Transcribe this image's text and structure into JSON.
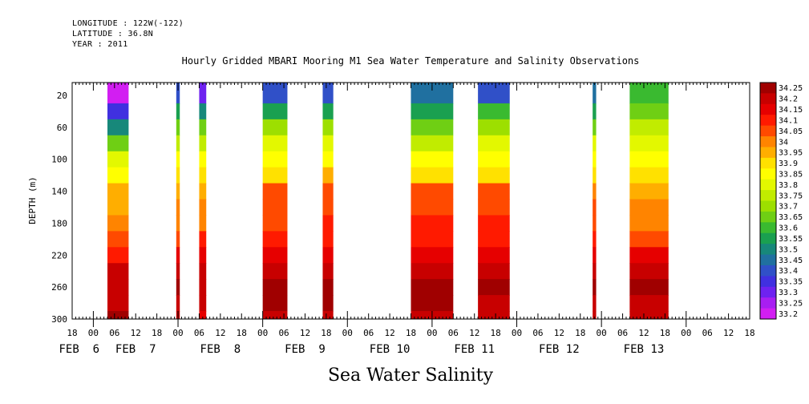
{
  "header": {
    "longitude": "LONGITUDE : 122W(-122)",
    "latitude": "LATITUDE : 36.8N",
    "year": "YEAR : 2011"
  },
  "chart_data": {
    "type": "heatmap",
    "title": "Hourly Gridded MBARI Mooring M1 Sea Water Temperature and Salinity Observations",
    "bottom_title": "Sea Water Salinity",
    "ylabel": "DEPTH (m)",
    "ylim": [
      300,
      4
    ],
    "y_ticks": [
      20,
      60,
      100,
      140,
      180,
      220,
      260,
      300
    ],
    "y_tick_labels": [
      "20",
      "60",
      "100",
      "140",
      "180",
      "220",
      "260",
      "300"
    ],
    "x_hours_start": -6,
    "x_hours_end": 186,
    "x_hour_ticks": [
      {
        "h": -6,
        "label": "18"
      },
      {
        "h": 0,
        "label": "00"
      },
      {
        "h": 6,
        "label": "06"
      },
      {
        "h": 12,
        "label": "12"
      },
      {
        "h": 18,
        "label": "18"
      },
      {
        "h": 24,
        "label": "00"
      },
      {
        "h": 30,
        "label": "06"
      },
      {
        "h": 36,
        "label": "12"
      },
      {
        "h": 42,
        "label": "18"
      },
      {
        "h": 48,
        "label": "00"
      },
      {
        "h": 54,
        "label": "06"
      },
      {
        "h": 60,
        "label": "12"
      },
      {
        "h": 66,
        "label": "18"
      },
      {
        "h": 72,
        "label": "00"
      },
      {
        "h": 78,
        "label": "06"
      },
      {
        "h": 84,
        "label": "12"
      },
      {
        "h": 90,
        "label": "18"
      },
      {
        "h": 96,
        "label": "00"
      },
      {
        "h": 102,
        "label": "06"
      },
      {
        "h": 108,
        "label": "12"
      },
      {
        "h": 114,
        "label": "18"
      },
      {
        "h": 120,
        "label": "00"
      },
      {
        "h": 126,
        "label": "06"
      },
      {
        "h": 132,
        "label": "12"
      },
      {
        "h": 138,
        "label": "18"
      },
      {
        "h": 144,
        "label": "00"
      },
      {
        "h": 150,
        "label": "06"
      },
      {
        "h": 156,
        "label": "12"
      },
      {
        "h": 162,
        "label": "18"
      },
      {
        "h": 168,
        "label": "00"
      },
      {
        "h": 174,
        "label": "06"
      },
      {
        "h": 180,
        "label": "12"
      },
      {
        "h": 186,
        "label": "18"
      }
    ],
    "date_labels": [
      {
        "h": -4,
        "label": "FEB  6"
      },
      {
        "h": 12,
        "label": "FEB  7"
      },
      {
        "h": 36,
        "label": "FEB  8"
      },
      {
        "h": 60,
        "label": "FEB  9"
      },
      {
        "h": 84,
        "label": "FEB 10"
      },
      {
        "h": 108,
        "label": "FEB 11"
      },
      {
        "h": 132,
        "label": "FEB 12"
      },
      {
        "h": 156,
        "label": "FEB 13"
      }
    ],
    "colorbar": {
      "levels": [
        34.25,
        34.2,
        34.15,
        34.1,
        34.05,
        34,
        33.95,
        33.9,
        33.85,
        33.8,
        33.75,
        33.7,
        33.65,
        33.6,
        33.55,
        33.5,
        33.45,
        33.4,
        33.35,
        33.3,
        33.25,
        33.2
      ],
      "labels": [
        "34.25",
        "34.2",
        "34.15",
        "34.1",
        "34.05",
        "34",
        "33.95",
        "33.9",
        "33.85",
        "33.8",
        "33.75",
        "33.7",
        "33.65",
        "33.6",
        "33.55",
        "33.5",
        "33.45",
        "33.4",
        "33.35",
        "33.3",
        "33.25",
        "33.2"
      ],
      "colors": [
        "#a00000",
        "#c80000",
        "#e60000",
        "#ff1a00",
        "#ff4a00",
        "#ff8400",
        "#ffae00",
        "#ffe100",
        "#ffff00",
        "#e3f800",
        "#c1ec00",
        "#9ddf00",
        "#6fcf14",
        "#3aba30",
        "#1aa050",
        "#17887a",
        "#2070a0",
        "#3050c8",
        "#4030e0",
        "#6e22f0",
        "#a81ef2",
        "#d21ef2"
      ]
    },
    "segments": [
      {
        "start": 4,
        "end": 10,
        "profile": [
          [
            20,
            33.22
          ],
          [
            40,
            33.35
          ],
          [
            60,
            33.52
          ],
          [
            80,
            33.67
          ],
          [
            100,
            33.79
          ],
          [
            120,
            33.86
          ],
          [
            140,
            33.94
          ],
          [
            160,
            33.97
          ],
          [
            180,
            34.01
          ],
          [
            200,
            34.07
          ],
          [
            220,
            34.12
          ],
          [
            240,
            34.19
          ],
          [
            260,
            34.21
          ],
          [
            280,
            34.22
          ],
          [
            300,
            34.23
          ]
        ]
      },
      {
        "start": 23.5,
        "end": 24.5,
        "profile": [
          [
            20,
            33.41
          ],
          [
            40,
            33.53
          ],
          [
            60,
            33.66
          ],
          [
            80,
            33.77
          ],
          [
            100,
            33.85
          ],
          [
            120,
            33.9
          ],
          [
            140,
            33.95
          ],
          [
            160,
            33.99
          ],
          [
            180,
            34.02
          ],
          [
            200,
            34.07
          ],
          [
            220,
            34.14
          ],
          [
            240,
            34.21
          ],
          [
            260,
            34.25
          ],
          [
            280,
            34.22
          ],
          [
            300,
            34.21
          ]
        ]
      },
      {
        "start": 30,
        "end": 32,
        "profile": [
          [
            20,
            33.31
          ],
          [
            40,
            33.5
          ],
          [
            60,
            33.64
          ],
          [
            80,
            33.77
          ],
          [
            100,
            33.86
          ],
          [
            120,
            33.9
          ],
          [
            140,
            33.95
          ],
          [
            160,
            33.99
          ],
          [
            180,
            34.02
          ],
          [
            200,
            34.08
          ],
          [
            220,
            34.14
          ],
          [
            240,
            34.19
          ],
          [
            260,
            34.21
          ],
          [
            280,
            34.18
          ],
          [
            300,
            34.17
          ]
        ]
      },
      {
        "start": 48,
        "end": 55,
        "profile": [
          [
            20,
            33.38
          ],
          [
            40,
            33.56
          ],
          [
            60,
            33.7
          ],
          [
            80,
            33.8
          ],
          [
            100,
            33.86
          ],
          [
            120,
            33.92
          ],
          [
            140,
            34.03
          ],
          [
            160,
            34.06
          ],
          [
            180,
            34.07
          ],
          [
            200,
            34.1
          ],
          [
            220,
            34.15
          ],
          [
            240,
            34.21
          ],
          [
            260,
            34.24
          ],
          [
            280,
            34.23
          ],
          [
            300,
            34.22
          ]
        ]
      },
      {
        "start": 65,
        "end": 68,
        "profile": [
          [
            20,
            33.42
          ],
          [
            40,
            33.56
          ],
          [
            60,
            33.68
          ],
          [
            80,
            33.79
          ],
          [
            100,
            33.86
          ],
          [
            120,
            33.94
          ],
          [
            140,
            34.04
          ],
          [
            160,
            34.07
          ],
          [
            180,
            34.08
          ],
          [
            200,
            34.1
          ],
          [
            220,
            34.14
          ],
          [
            240,
            34.22
          ],
          [
            260,
            34.25
          ],
          [
            280,
            34.23
          ],
          [
            300,
            34.22
          ]
        ]
      },
      {
        "start": 90,
        "end": 102,
        "profile": [
          [
            20,
            33.43
          ],
          [
            40,
            33.56
          ],
          [
            60,
            33.67
          ],
          [
            80,
            33.77
          ],
          [
            100,
            33.84
          ],
          [
            120,
            33.88
          ],
          [
            140,
            34.05
          ],
          [
            160,
            34.07
          ],
          [
            180,
            34.08
          ],
          [
            200,
            34.1
          ],
          [
            220,
            34.15
          ],
          [
            240,
            34.22
          ],
          [
            260,
            34.25
          ],
          [
            280,
            34.23
          ],
          [
            300,
            34.22
          ]
        ]
      },
      {
        "start": 109,
        "end": 118,
        "profile": [
          [
            20,
            33.42
          ],
          [
            40,
            33.58
          ],
          [
            60,
            33.7
          ],
          [
            80,
            33.78
          ],
          [
            100,
            33.84
          ],
          [
            120,
            33.9
          ],
          [
            140,
            34.04
          ],
          [
            160,
            34.07
          ],
          [
            180,
            34.08
          ],
          [
            200,
            34.1
          ],
          [
            220,
            34.15
          ],
          [
            240,
            34.22
          ],
          [
            260,
            34.24
          ],
          [
            280,
            34.22
          ],
          [
            300,
            34.2
          ]
        ]
      },
      {
        "start": 141.5,
        "end": 142.5,
        "profile": [
          [
            20,
            33.44
          ],
          [
            40,
            33.56
          ],
          [
            60,
            33.67
          ],
          [
            80,
            33.78
          ],
          [
            100,
            33.86
          ],
          [
            120,
            33.92
          ],
          [
            140,
            34.02
          ],
          [
            160,
            34.05
          ],
          [
            180,
            34.07
          ],
          [
            200,
            34.1
          ],
          [
            220,
            34.15
          ],
          [
            240,
            34.21
          ],
          [
            260,
            34.23
          ],
          [
            280,
            34.2
          ],
          [
            300,
            34.19
          ]
        ]
      },
      {
        "start": 152,
        "end": 163,
        "profile": [
          [
            20,
            33.58
          ],
          [
            40,
            33.66
          ],
          [
            60,
            33.74
          ],
          [
            80,
            33.81
          ],
          [
            100,
            33.85
          ],
          [
            120,
            33.9
          ],
          [
            140,
            33.97
          ],
          [
            160,
            34.0
          ],
          [
            180,
            34.02
          ],
          [
            200,
            34.07
          ],
          [
            220,
            34.14
          ],
          [
            240,
            34.2
          ],
          [
            260,
            34.24
          ],
          [
            280,
            34.22
          ],
          [
            300,
            34.21
          ]
        ]
      }
    ]
  }
}
